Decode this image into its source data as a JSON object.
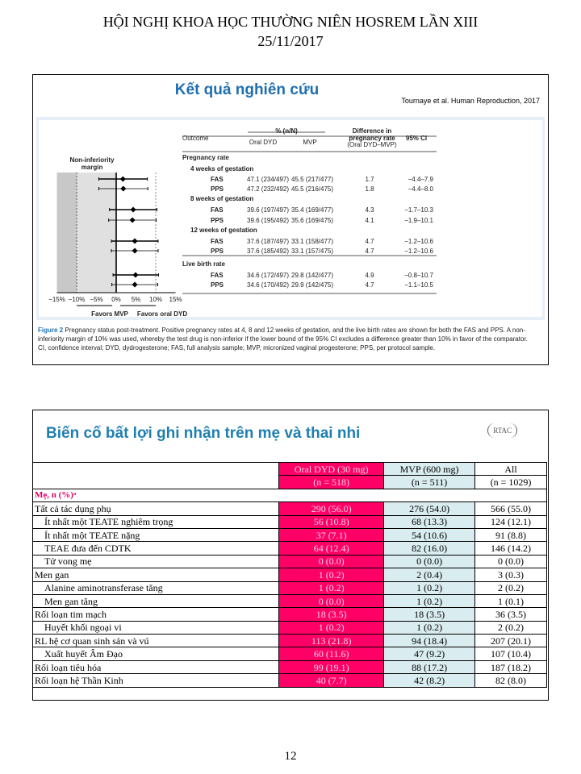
{
  "header": {
    "line1": "HỘI NGHỊ KHOA HỌC THƯỜNG NIÊN HOSREM LẦN XIII",
    "line2": "25/11/2017"
  },
  "slide1": {
    "title": "Kết quả nghiên cứu",
    "citation": "Tournaye et al. Human Reproduction, 2017",
    "margin_label": "Non-inferiority margin",
    "axis_ticks": [
      "−15%",
      "−10%",
      "−5%",
      "0%",
      "5%",
      "10%",
      "15%"
    ],
    "favors_left": "Favors MVP",
    "favors_right": "Favors oral DYD",
    "columns": {
      "outcome": "Outcome",
      "pct": "% (n/N)",
      "dyd": "Oral DYD",
      "mvp": "MVP",
      "diff1": "Difference in",
      "diff2": "pregnancy rate",
      "diff3": "(Oral DYD–MVP)",
      "ci": "95% CI"
    },
    "section_pregnancy": "Pregnancy rate",
    "section_live": "Live birth rate",
    "groups": [
      {
        "label": "4 weeks of gestation",
        "rows": [
          {
            "pop": "FAS",
            "dyd": "47.1 (234/497)",
            "mvp": "45.5 (217/477)",
            "diff": "1.7",
            "ci": "−4.4–7.9",
            "est": 1.7,
            "lo": -4.4,
            "hi": 7.9
          },
          {
            "pop": "PPS",
            "dyd": "47.2 (232/492)",
            "mvp": "45.5 (216/475)",
            "diff": "1.8",
            "ci": "−4.4–8.0",
            "est": 1.8,
            "lo": -4.4,
            "hi": 8.0
          }
        ]
      },
      {
        "label": "8 weeks of gestation",
        "rows": [
          {
            "pop": "FAS",
            "dyd": "39.6 (197/497)",
            "mvp": "35.4 (169/477)",
            "diff": "4.3",
            "ci": "−1.7–10.3",
            "est": 4.3,
            "lo": -1.7,
            "hi": 10.3
          },
          {
            "pop": "PPS",
            "dyd": "39.6 (195/492)",
            "mvp": "35.6 (169/475)",
            "diff": "4.1",
            "ci": "−1.9–10.1",
            "est": 4.1,
            "lo": -1.9,
            "hi": 10.1
          }
        ]
      },
      {
        "label": "12 weeks of gestation",
        "rows": [
          {
            "pop": "FAS",
            "dyd": "37.6 (187/497)",
            "mvp": "33.1 (158/477)",
            "diff": "4.7",
            "ci": "−1.2–10.6",
            "est": 4.7,
            "lo": -1.2,
            "hi": 10.6
          },
          {
            "pop": "PPS",
            "dyd": "37.6 (185/492)",
            "mvp": "33.1 (157/475)",
            "diff": "4.7",
            "ci": "−1.2–10.6",
            "est": 4.7,
            "lo": -1.2,
            "hi": 10.6
          }
        ]
      },
      {
        "label": "",
        "rows": [
          {
            "pop": "FAS",
            "dyd": "34.6 (172/497)",
            "mvp": "29.8 (142/477)",
            "diff": "4.9",
            "ci": "−0.8–10.7",
            "est": 4.9,
            "lo": -0.8,
            "hi": 10.7
          },
          {
            "pop": "PPS",
            "dyd": "34.6 (170/492)",
            "mvp": "29.9 (142/475)",
            "diff": "4.7",
            "ci": "−1.1–10.5",
            "est": 4.7,
            "lo": -1.1,
            "hi": 10.5
          }
        ]
      }
    ],
    "caption_fig": "Figure 2",
    "caption_text": "Pregnancy status post-treatment. Positive pregnancy rates at 4, 8 and 12 weeks of gestation, and the live birth rates are shown for both the FAS and PPS. A non-inferiority margin of 10% was used, whereby the test drug is non-inferior if the lower bound of the 95% CI excludes a difference greater than 10% in favor of the comparator.",
    "caption_abbr": "CI, confidence interval; DYD, dydrogesterone; FAS, full analysis sample; MVP, micronized vaginal progesterone; PPS, per protocol sample."
  },
  "slide2": {
    "title": "Biến cố bất lợi ghi nhận trên mẹ và thai nhi",
    "logo": "RTAC",
    "col_dyd": "Oral DYD (30 mg)",
    "col_mvp": "MVP (600 mg)",
    "col_all": "All",
    "n_dyd": "(n = 518)",
    "n_mvp": "(n = 511)",
    "n_all": "(n = 1029)",
    "section": "Mẹ, n (%)ᵃ",
    "rows": [
      {
        "label": "Tất cả tác dụng phụ",
        "indent": false,
        "dyd": "290 (56.0)",
        "mvp": "276 (54.0)",
        "all": "566 (55.0)"
      },
      {
        "label": "Ít nhất một TEATE nghiêm trọng",
        "indent": true,
        "dyd": "56 (10.8)",
        "mvp": "68 (13.3)",
        "all": "124 (12.1)"
      },
      {
        "label": "Ít nhất một TEATE nặng",
        "indent": true,
        "dyd": "37 (7.1)",
        "mvp": "54 (10.6)",
        "all": "91 (8.8)"
      },
      {
        "label": "TEAE đưa đến CDTK",
        "indent": true,
        "dyd": "64 (12.4)",
        "mvp": "82 (16.0)",
        "all": "146 (14.2)"
      },
      {
        "label": "Tử vong mẹ",
        "indent": true,
        "dyd": "0 (0.0)",
        "mvp": "0 (0.0)",
        "all": "0 (0.0)"
      },
      {
        "label": "Men gan",
        "indent": false,
        "dyd": "1 (0.2)",
        "mvp": "2 (0.4)",
        "all": "3 (0.3)"
      },
      {
        "label": "Alanine aminotransferase tăng",
        "indent": true,
        "dyd": "1 (0.2)",
        "mvp": "1 (0.2)",
        "all": "2 (0.2)"
      },
      {
        "label": "Men gan tăng",
        "indent": true,
        "dyd": "0 (0.0)",
        "mvp": "1 (0.2)",
        "all": "1 (0.1)"
      },
      {
        "label": "Rối loạn tim mạch",
        "indent": false,
        "dyd": "18 (3.5)",
        "mvp": "18 (3.5)",
        "all": "36 (3.5)"
      },
      {
        "label": "Huyết khối ngoại vi",
        "indent": true,
        "dyd": "1 (0.2)",
        "mvp": "1 (0.2)",
        "all": "2 (0.2)"
      },
      {
        "label": "RL hệ cơ quan sinh sản và vú",
        "indent": false,
        "dyd": "113 (21.8)",
        "mvp": "94 (18.4)",
        "all": "207 (20.1)"
      },
      {
        "label": "Xuất huyết Âm Đạo",
        "indent": true,
        "dyd": "60 (11.6)",
        "mvp": "47 (9.2)",
        "all": "107 (10.4)"
      },
      {
        "label": "Rối loạn tiêu hóa",
        "indent": false,
        "dyd": "99 (19.1)",
        "mvp": "88 (17.2)",
        "all": "187 (18.2)"
      },
      {
        "label": "Rối loạn hệ Thần Kinh",
        "indent": false,
        "dyd": "40 (7.7)",
        "mvp": "42 (8.2)",
        "all": "82 (8.0)"
      }
    ]
  },
  "page_number": "12"
}
